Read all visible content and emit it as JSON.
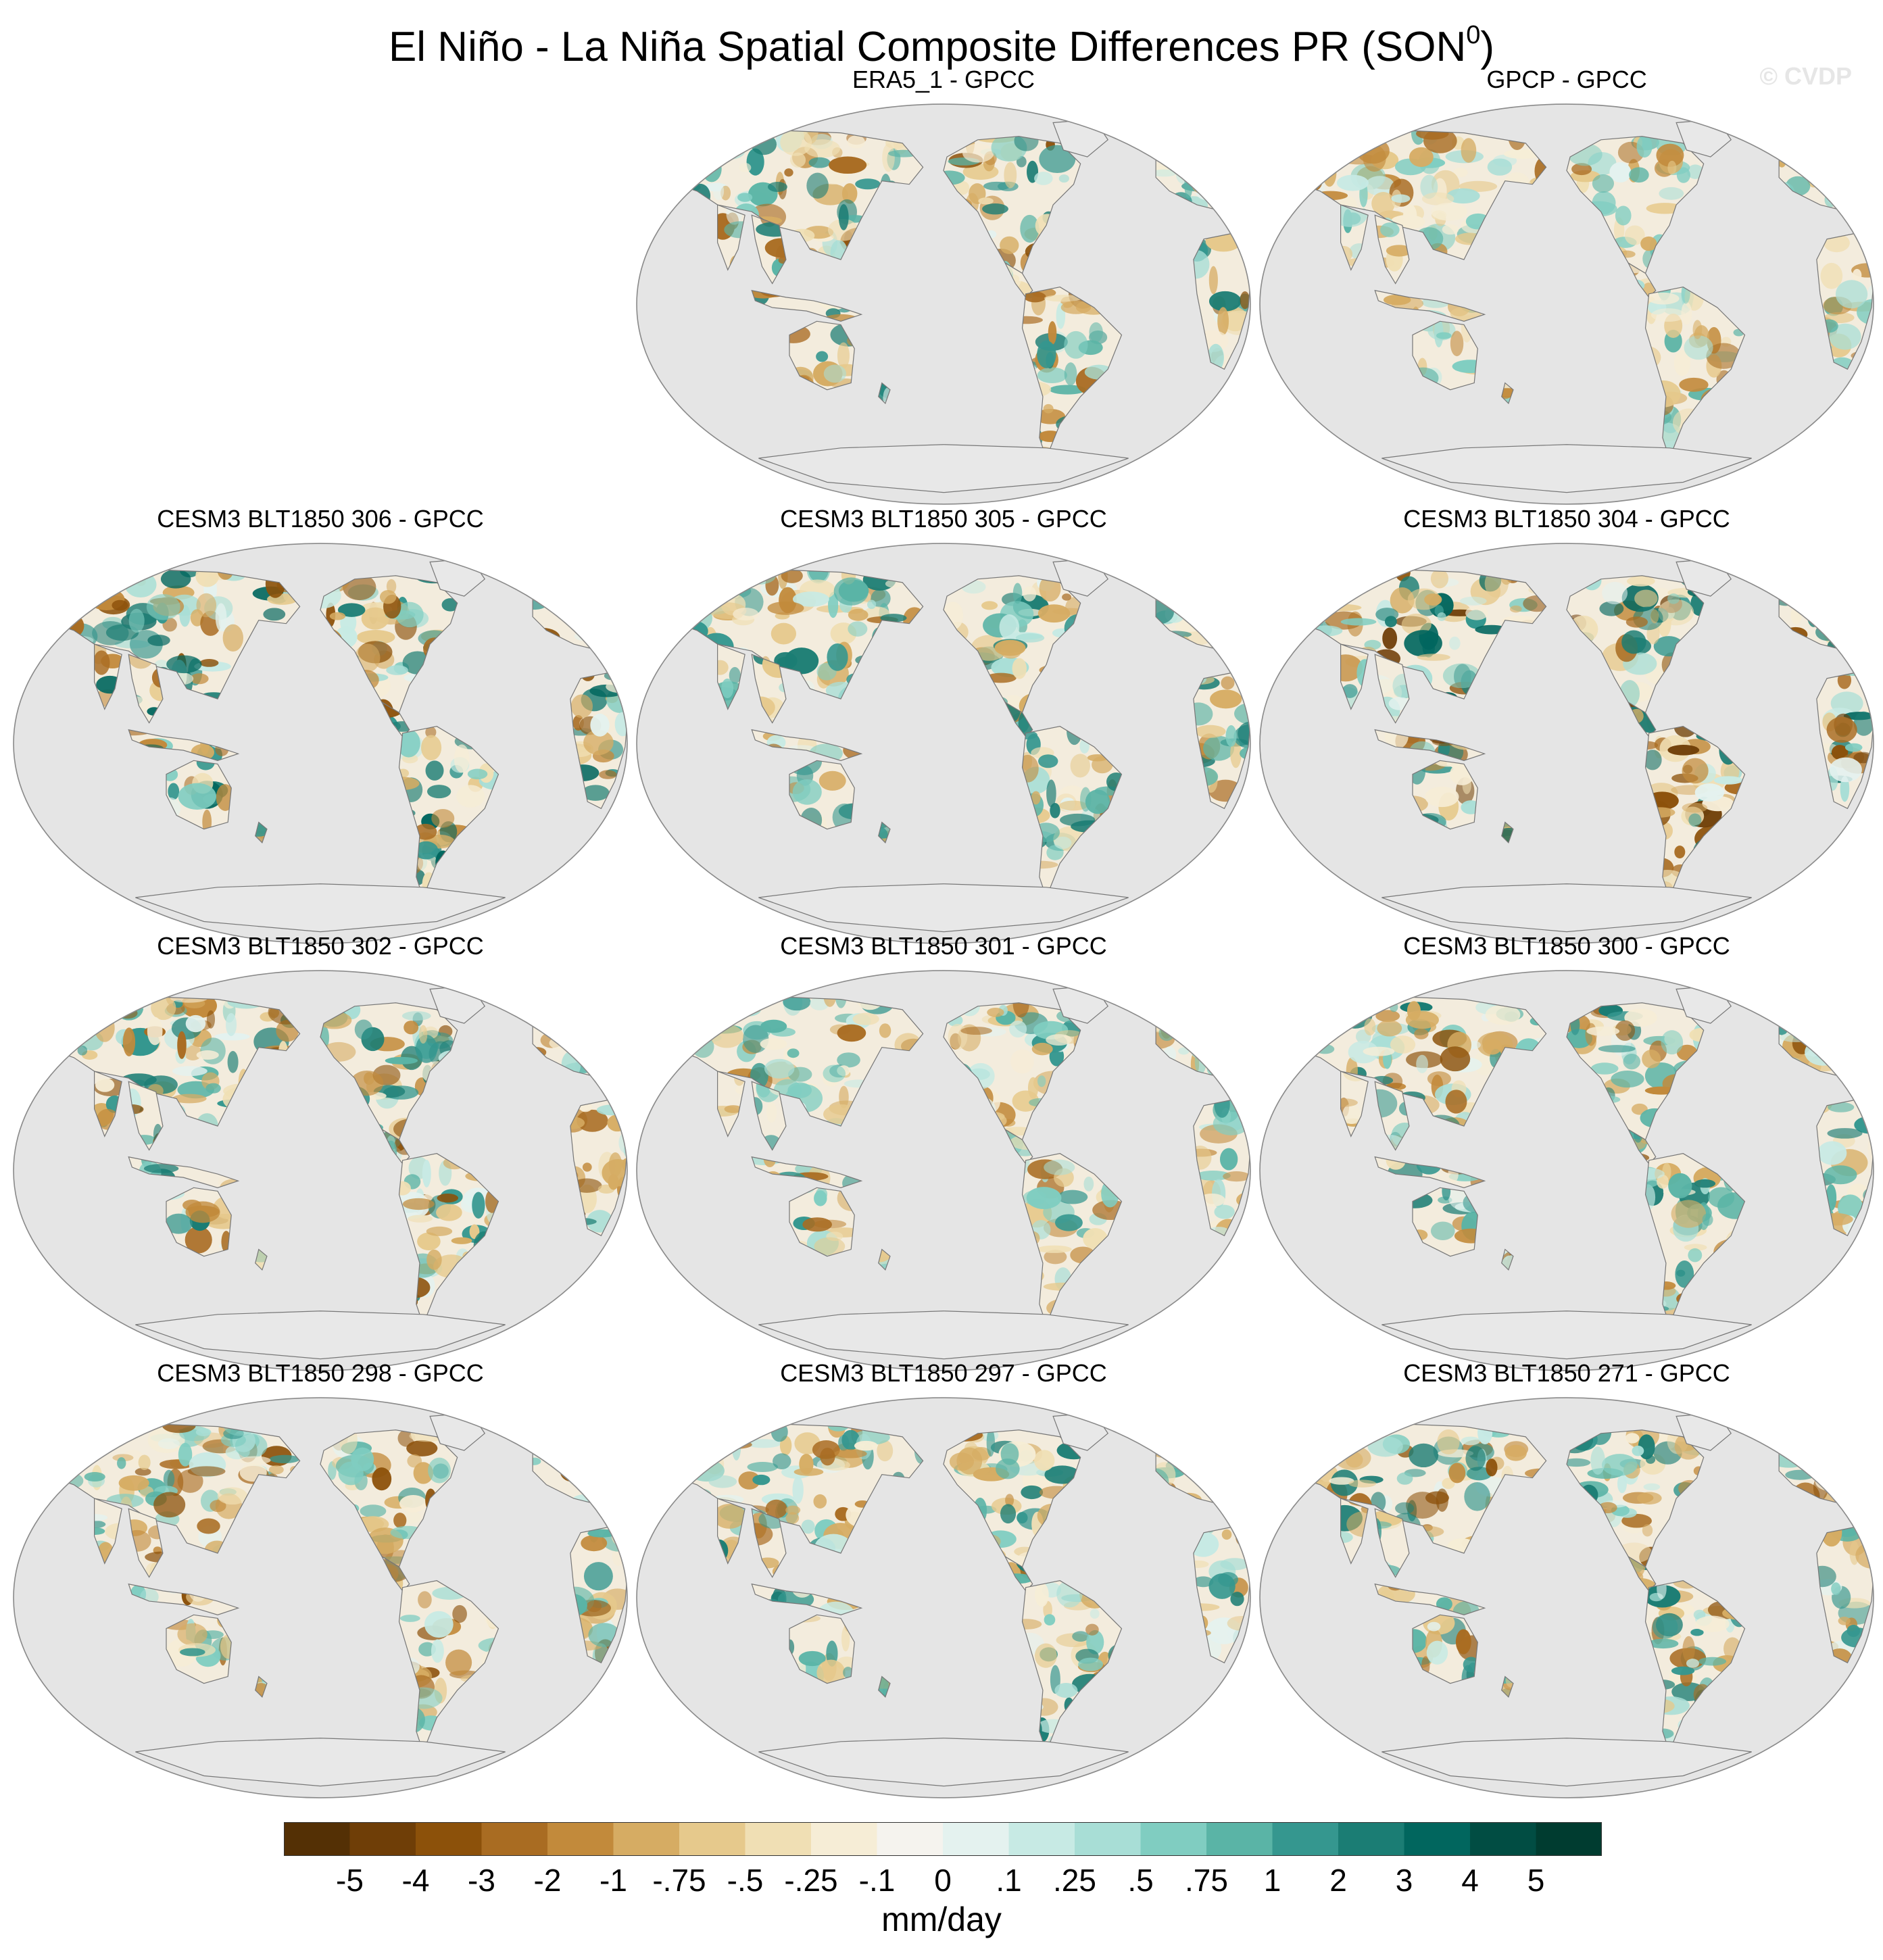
{
  "title": {
    "main": "El Niño - La Niña Spatial Composite Differences PR (SON",
    "superscript": "0",
    "close": ")"
  },
  "watermark": "© CVDP",
  "panels": [
    {
      "title": "ERA5_1 - GPCC",
      "variant": 0
    },
    {
      "title": "GPCP - GPCC",
      "variant": 1
    },
    {
      "title": "CESM3 BLT1850 306 - GPCC",
      "variant": 2
    },
    {
      "title": "CESM3 BLT1850 305 - GPCC",
      "variant": 3
    },
    {
      "title": "CESM3 BLT1850 304 - GPCC",
      "variant": 4
    },
    {
      "title": "CESM3 BLT1850 302 - GPCC",
      "variant": 5
    },
    {
      "title": "CESM3 BLT1850 301 - GPCC",
      "variant": 6
    },
    {
      "title": "CESM3 BLT1850 300 - GPCC",
      "variant": 7
    },
    {
      "title": "CESM3 BLT1850 298 - GPCC",
      "variant": 8
    },
    {
      "title": "CESM3 BLT1850 297 - GPCC",
      "variant": 9
    },
    {
      "title": "CESM3 BLT1850 271 - GPCC",
      "variant": 10
    }
  ],
  "colorbar": {
    "labels": [
      "-5",
      "-4",
      "-3",
      "-2",
      "-1",
      "-.75",
      "-.5",
      "-.25",
      "-.1",
      "0",
      ".1",
      ".25",
      ".5",
      ".75",
      "1",
      "2",
      "3",
      "4",
      "5"
    ],
    "colors": [
      "#543005",
      "#6f3e07",
      "#8c510a",
      "#a96c22",
      "#c28a3b",
      "#d6ac63",
      "#e6c98c",
      "#f0dfb4",
      "#f6edd6",
      "#f5f3ee",
      "#e4f2ef",
      "#c7eae4",
      "#a8ded6",
      "#80cdc1",
      "#5ab4a6",
      "#35978f",
      "#1b7d74",
      "#01665e",
      "#014d43",
      "#003c30"
    ],
    "units": "mm/day"
  }
}
